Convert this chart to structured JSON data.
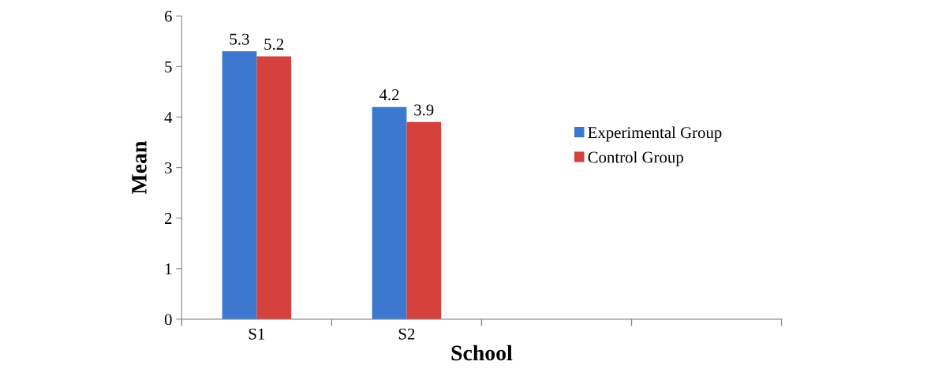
{
  "chart_data": {
    "type": "bar",
    "xlabel": "School",
    "ylabel": "Mean",
    "categories": [
      "S1",
      "S2",
      null,
      null
    ],
    "series": [
      {
        "name": "Experimental Group",
        "color": "#3d78d0",
        "values": [
          5.3,
          4.2,
          null,
          null
        ]
      },
      {
        "name": "Control Group",
        "color": "#d5413c",
        "values": [
          5.2,
          3.9,
          null,
          null
        ]
      }
    ],
    "ylim": [
      0,
      6
    ],
    "yticks": [
      0,
      1,
      2,
      3,
      4,
      5,
      6
    ],
    "grid": false,
    "legend": "right",
    "data_labels": true
  }
}
